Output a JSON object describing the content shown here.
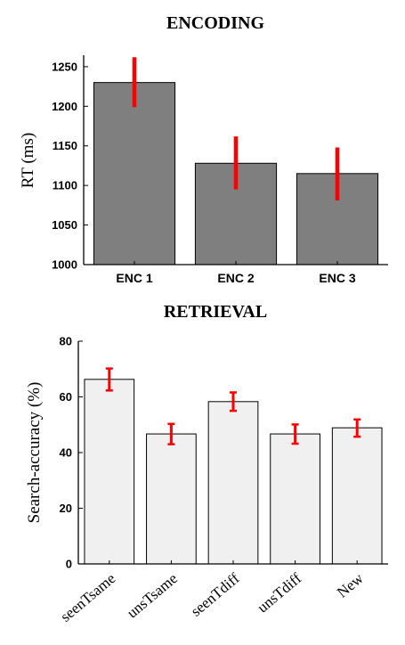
{
  "chart_data": [
    {
      "type": "bar",
      "title": "ENCODING",
      "xlabel": "",
      "ylabel": "RT (ms)",
      "categories": [
        "ENC 1",
        "ENC 2",
        "ENC 3"
      ],
      "values": [
        1230,
        1128,
        1115
      ],
      "error_low": [
        1199,
        1095,
        1081
      ],
      "error_high": [
        1262,
        1162,
        1148
      ],
      "ylim": [
        1000,
        1260
      ],
      "yticks": [
        1000,
        1050,
        1100,
        1150,
        1200,
        1250
      ],
      "bar_color": "#7f7f7f",
      "error_color": "#ff0000",
      "grid": false
    },
    {
      "type": "bar",
      "title": "RETRIEVAL",
      "xlabel": "",
      "ylabel": "Search-accuracy (%)",
      "categories": [
        "seenTsame",
        "unsTsame",
        "seenTdiff",
        "unsTdiff",
        "New"
      ],
      "values": [
        66.3,
        46.7,
        58.3,
        46.7,
        48.9
      ],
      "error_low": [
        62.3,
        43.0,
        55.0,
        43.2,
        45.7
      ],
      "error_high": [
        70.2,
        50.3,
        61.6,
        50.1,
        51.9
      ],
      "ylim": [
        0,
        80
      ],
      "yticks": [
        0,
        20,
        40,
        60,
        80
      ],
      "bar_color": "#f0f0f0",
      "error_color": "#ff0000",
      "grid": false
    }
  ]
}
